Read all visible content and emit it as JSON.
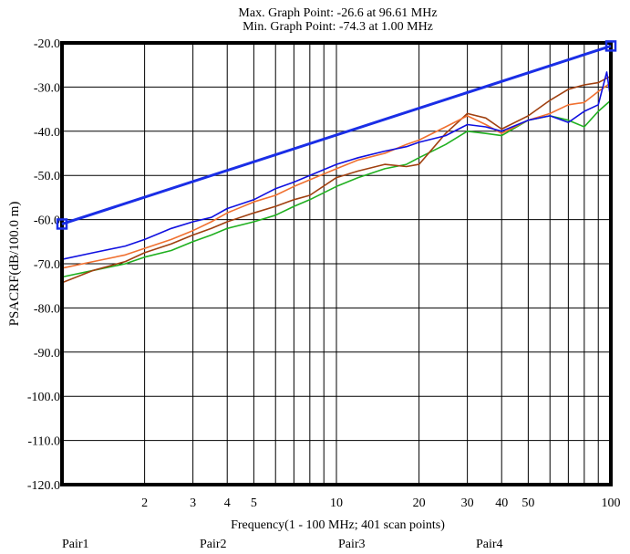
{
  "header": {
    "max_point": "Max. Graph Point: -26.6 at 96.61 MHz",
    "min_point": "Min. Graph Point: -74.3 at 1.00 MHz"
  },
  "colors": {
    "pair1": "#1010e0",
    "pair2": "#f07030",
    "pair3": "#20b020",
    "pair4": "#a04010",
    "limit": "#1a2ee6"
  },
  "chart_data": {
    "type": "line",
    "xlabel": "Frequency(1 - 100 MHz; 401 scan points)",
    "ylabel": "PSACRF(dB/100.0 m)",
    "xscale": "log",
    "xlim": [
      1,
      100
    ],
    "ylim": [
      -120,
      -20
    ],
    "grid": true,
    "x_ticks": [
      2,
      3,
      4,
      5,
      10,
      20,
      30,
      40,
      50,
      100
    ],
    "x_tick_labels": [
      "2",
      "3",
      "4",
      "5",
      "10",
      "20",
      "30",
      "40",
      "50",
      "100"
    ],
    "y_ticks": [
      -20,
      -30,
      -40,
      -50,
      -60,
      -70,
      -80,
      -90,
      -100,
      -110,
      -120
    ],
    "y_tick_labels": [
      "-20.0",
      "-30.0",
      "-40.0",
      "-50.0",
      "-60.0",
      "-70.0",
      "-80.0",
      "-90.0",
      "-100.0",
      "-110.0",
      "-120.0"
    ],
    "limit_line": {
      "x": [
        1,
        100
      ],
      "y": [
        -61,
        -20.7
      ]
    },
    "series": [
      {
        "name": "Pair1",
        "x": [
          1,
          1.3,
          1.7,
          2,
          2.5,
          3,
          3.5,
          4,
          5,
          6,
          7,
          8,
          10,
          12,
          15,
          18,
          20,
          25,
          30,
          35,
          40,
          50,
          60,
          70,
          80,
          90,
          96.61,
          100
        ],
        "y": [
          -69,
          -67.5,
          -66,
          -64.5,
          -62,
          -60.5,
          -59.5,
          -57.5,
          -55.5,
          -53,
          -51.5,
          -50,
          -47.5,
          -46,
          -44.5,
          -43.5,
          -42.5,
          -41,
          -38.5,
          -39,
          -40,
          -37.5,
          -36.5,
          -38,
          -35.5,
          -34,
          -26.6,
          -33
        ]
      },
      {
        "name": "Pair2",
        "x": [
          1,
          1.3,
          1.7,
          2,
          2.5,
          3,
          3.5,
          4,
          5,
          6,
          7,
          8,
          10,
          12,
          15,
          18,
          20,
          25,
          30,
          35,
          40,
          50,
          60,
          70,
          80,
          90,
          100
        ],
        "y": [
          -71,
          -69.5,
          -68,
          -66.5,
          -64.5,
          -62.5,
          -60.5,
          -58.5,
          -56,
          -54.5,
          -52.5,
          -51,
          -48.5,
          -46.5,
          -45,
          -43,
          -42,
          -39,
          -36.5,
          -38.5,
          -40.5,
          -37.5,
          -36,
          -34,
          -33.5,
          -31,
          -29
        ]
      },
      {
        "name": "Pair3",
        "x": [
          1,
          1.3,
          1.7,
          2,
          2.5,
          3,
          3.5,
          4,
          5,
          6,
          7,
          8,
          10,
          12,
          15,
          18,
          20,
          25,
          30,
          35,
          40,
          50,
          60,
          70,
          80,
          90,
          100
        ],
        "y": [
          -73,
          -71.5,
          -70,
          -68.5,
          -67,
          -65,
          -63.5,
          -62,
          -60.5,
          -59,
          -57,
          -55.5,
          -52.5,
          -50.5,
          -48.5,
          -47.5,
          -46,
          -43,
          -40,
          -40.5,
          -41,
          -37.5,
          -36.5,
          -37.5,
          -39,
          -35.5,
          -33
        ]
      },
      {
        "name": "Pair4",
        "x": [
          1,
          1.3,
          1.7,
          2,
          2.5,
          3,
          3.5,
          4,
          5,
          6,
          7,
          8,
          10,
          12,
          15,
          18,
          20,
          25,
          30,
          35,
          40,
          50,
          60,
          70,
          80,
          90,
          100
        ],
        "y": [
          -74.3,
          -71.5,
          -69.5,
          -67.5,
          -65.5,
          -63.5,
          -62,
          -60.5,
          -58.5,
          -57,
          -55.5,
          -54.5,
          -50.5,
          -49,
          -47.5,
          -48,
          -47.5,
          -40.5,
          -36,
          -37,
          -39.5,
          -36.5,
          -33,
          -30.5,
          -29.5,
          -29,
          -27.5
        ]
      }
    ]
  }
}
